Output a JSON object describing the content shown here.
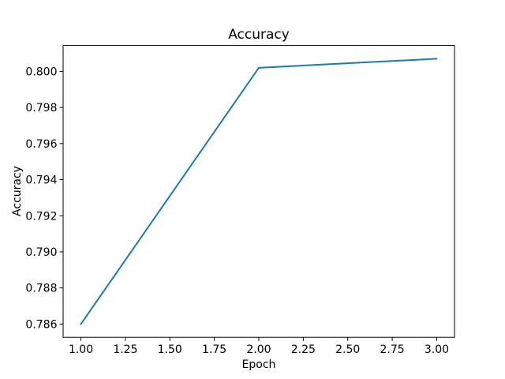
{
  "chart_data": {
    "type": "line",
    "title": "Accuracy",
    "xlabel": "Epoch",
    "ylabel": "Accuracy",
    "series": [
      {
        "name": "accuracy",
        "x": [
          1.0,
          2.0,
          3.0
        ],
        "y": [
          0.786,
          0.8002,
          0.8007
        ]
      }
    ],
    "xlim": [
      0.9,
      3.1
    ],
    "ylim": [
      0.785265,
      0.801435
    ],
    "xticks": {
      "values": [
        1.0,
        1.25,
        1.5,
        1.75,
        2.0,
        2.25,
        2.5,
        2.75,
        3.0
      ],
      "labels": [
        "1.00",
        "1.25",
        "1.50",
        "1.75",
        "2.00",
        "2.25",
        "2.50",
        "2.75",
        "3.00"
      ]
    },
    "yticks": {
      "values": [
        0.786,
        0.788,
        0.79,
        0.792,
        0.794,
        0.796,
        0.798,
        0.8
      ],
      "labels": [
        "0.786",
        "0.788",
        "0.790",
        "0.792",
        "0.794",
        "0.796",
        "0.798",
        "0.800"
      ]
    },
    "line_color": "#1f77b4",
    "axis_color": "#000000",
    "background": "#ffffff",
    "grid": false,
    "legend_position": "none"
  }
}
